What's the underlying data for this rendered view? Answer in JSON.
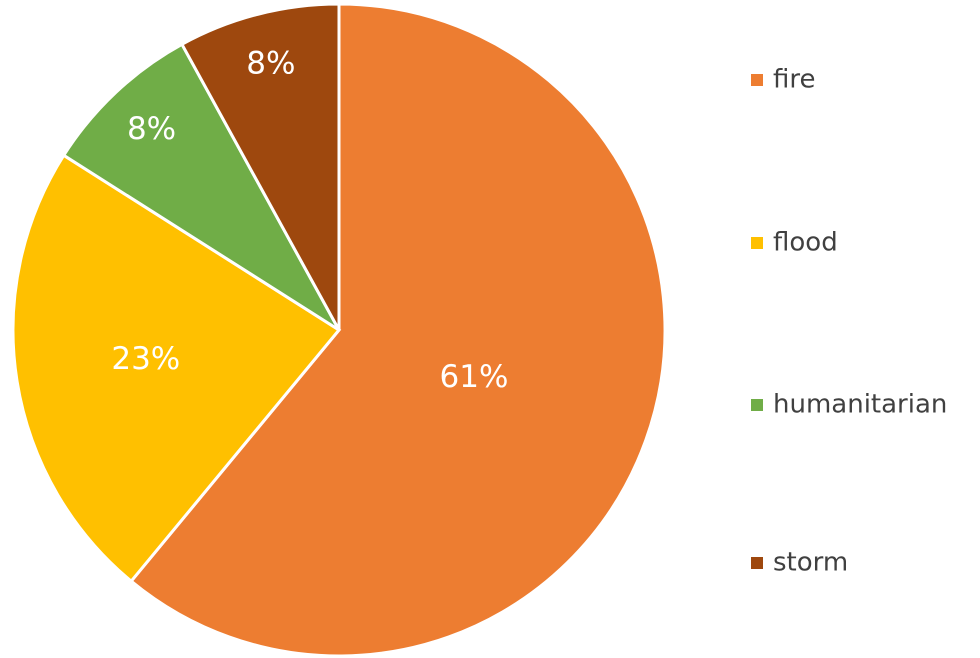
{
  "chart_data": {
    "type": "pie",
    "categories": [
      "fire",
      "flood",
      "humanitarian",
      "storm"
    ],
    "values": [
      61,
      23,
      8,
      8
    ],
    "value_labels": [
      "61%",
      "23%",
      "8%",
      "8%"
    ],
    "colors": [
      "#ED7D31",
      "#FFC000",
      "#70AD47",
      "#9E480E"
    ],
    "legend": "right"
  }
}
